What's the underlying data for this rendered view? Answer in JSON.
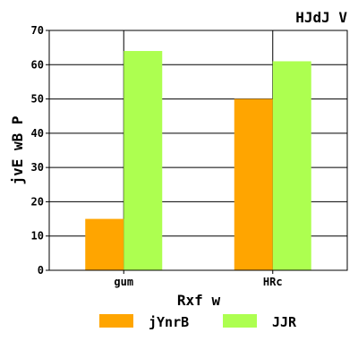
{
  "chart_data": {
    "type": "bar",
    "title": "HJdJ V",
    "xlabel": "Rxf w",
    "ylabel": "jvE wB P",
    "categories": [
      "gum",
      "HRc"
    ],
    "series": [
      {
        "name": "jYnrB",
        "values": [
          15,
          50
        ],
        "color": "#ffa500"
      },
      {
        "name": "JJR",
        "values": [
          64,
          61
        ],
        "color": "#adff50"
      }
    ],
    "ylim": [
      0,
      70
    ],
    "yticks": [
      0,
      10,
      20,
      30,
      40,
      50,
      60,
      70
    ],
    "grid": "horizontal and vertical",
    "legend_position": "bottom"
  }
}
